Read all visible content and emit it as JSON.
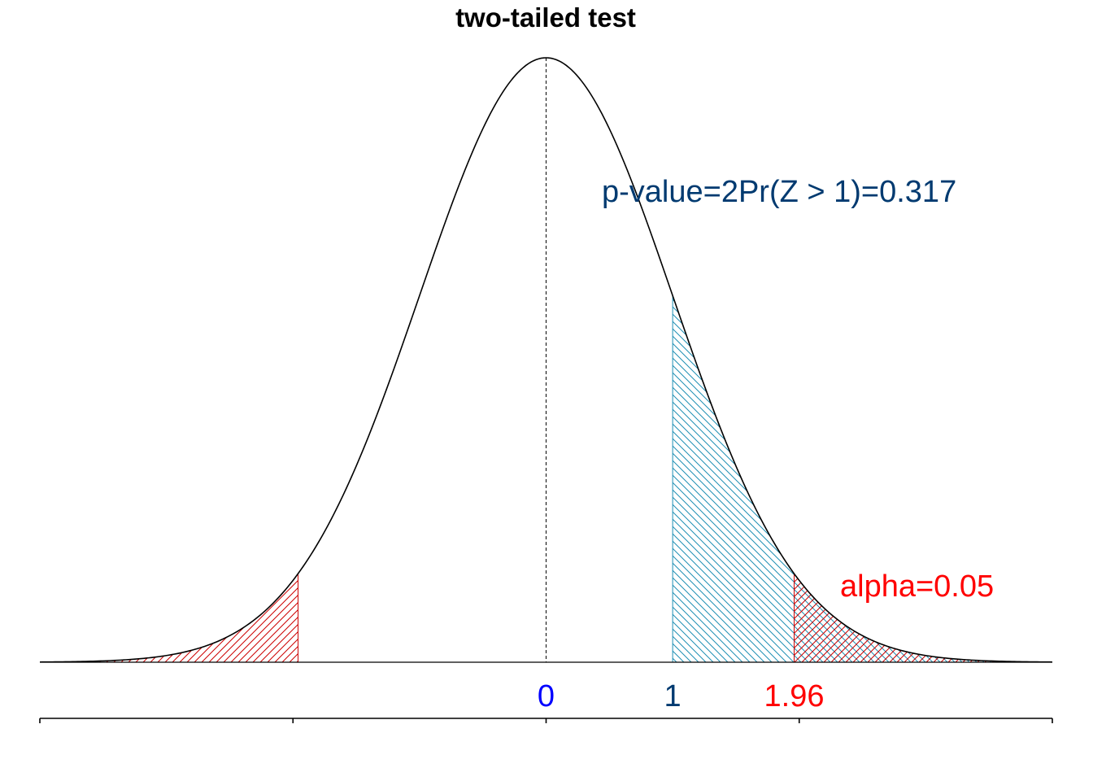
{
  "chart_data": {
    "type": "area",
    "title": "two-tailed test",
    "distribution": "standard normal",
    "xlim": [
      -4,
      4
    ],
    "mean": 0,
    "observed_z": 1,
    "critical_z": 1.96,
    "alpha": 0.05,
    "p_value": 0.317,
    "annotations": {
      "p_value_text": "p-value=2Pr(Z > 1)=0.317",
      "alpha_text": "alpha=0.05"
    },
    "x_labels": [
      {
        "value": 0,
        "text": "0",
        "color": "#0000ff"
      },
      {
        "value": 1,
        "text": "1",
        "color": "#003a70"
      },
      {
        "value": 1.96,
        "text": "1.96",
        "color": "#ff0000"
      }
    ],
    "axis_ticks": [
      -4,
      -2,
      0,
      2,
      4
    ],
    "shaded_regions": [
      {
        "name": "lower rejection region",
        "from": -4,
        "to": -1.96,
        "color": "#cc0000",
        "hatch": "forward"
      },
      {
        "name": "p-value region",
        "from": 1,
        "to": 4,
        "color": "#1f8fb4",
        "hatch": "backward"
      },
      {
        "name": "upper rejection region",
        "from": 1.96,
        "to": 4,
        "color": "#cc0000",
        "hatch": "forward"
      }
    ],
    "colors": {
      "curve": "#000000",
      "p_value_text": "#003a70",
      "alpha_text": "#ff0000",
      "zero_label": "#0000ff"
    },
    "grid": false,
    "legend": "none"
  }
}
